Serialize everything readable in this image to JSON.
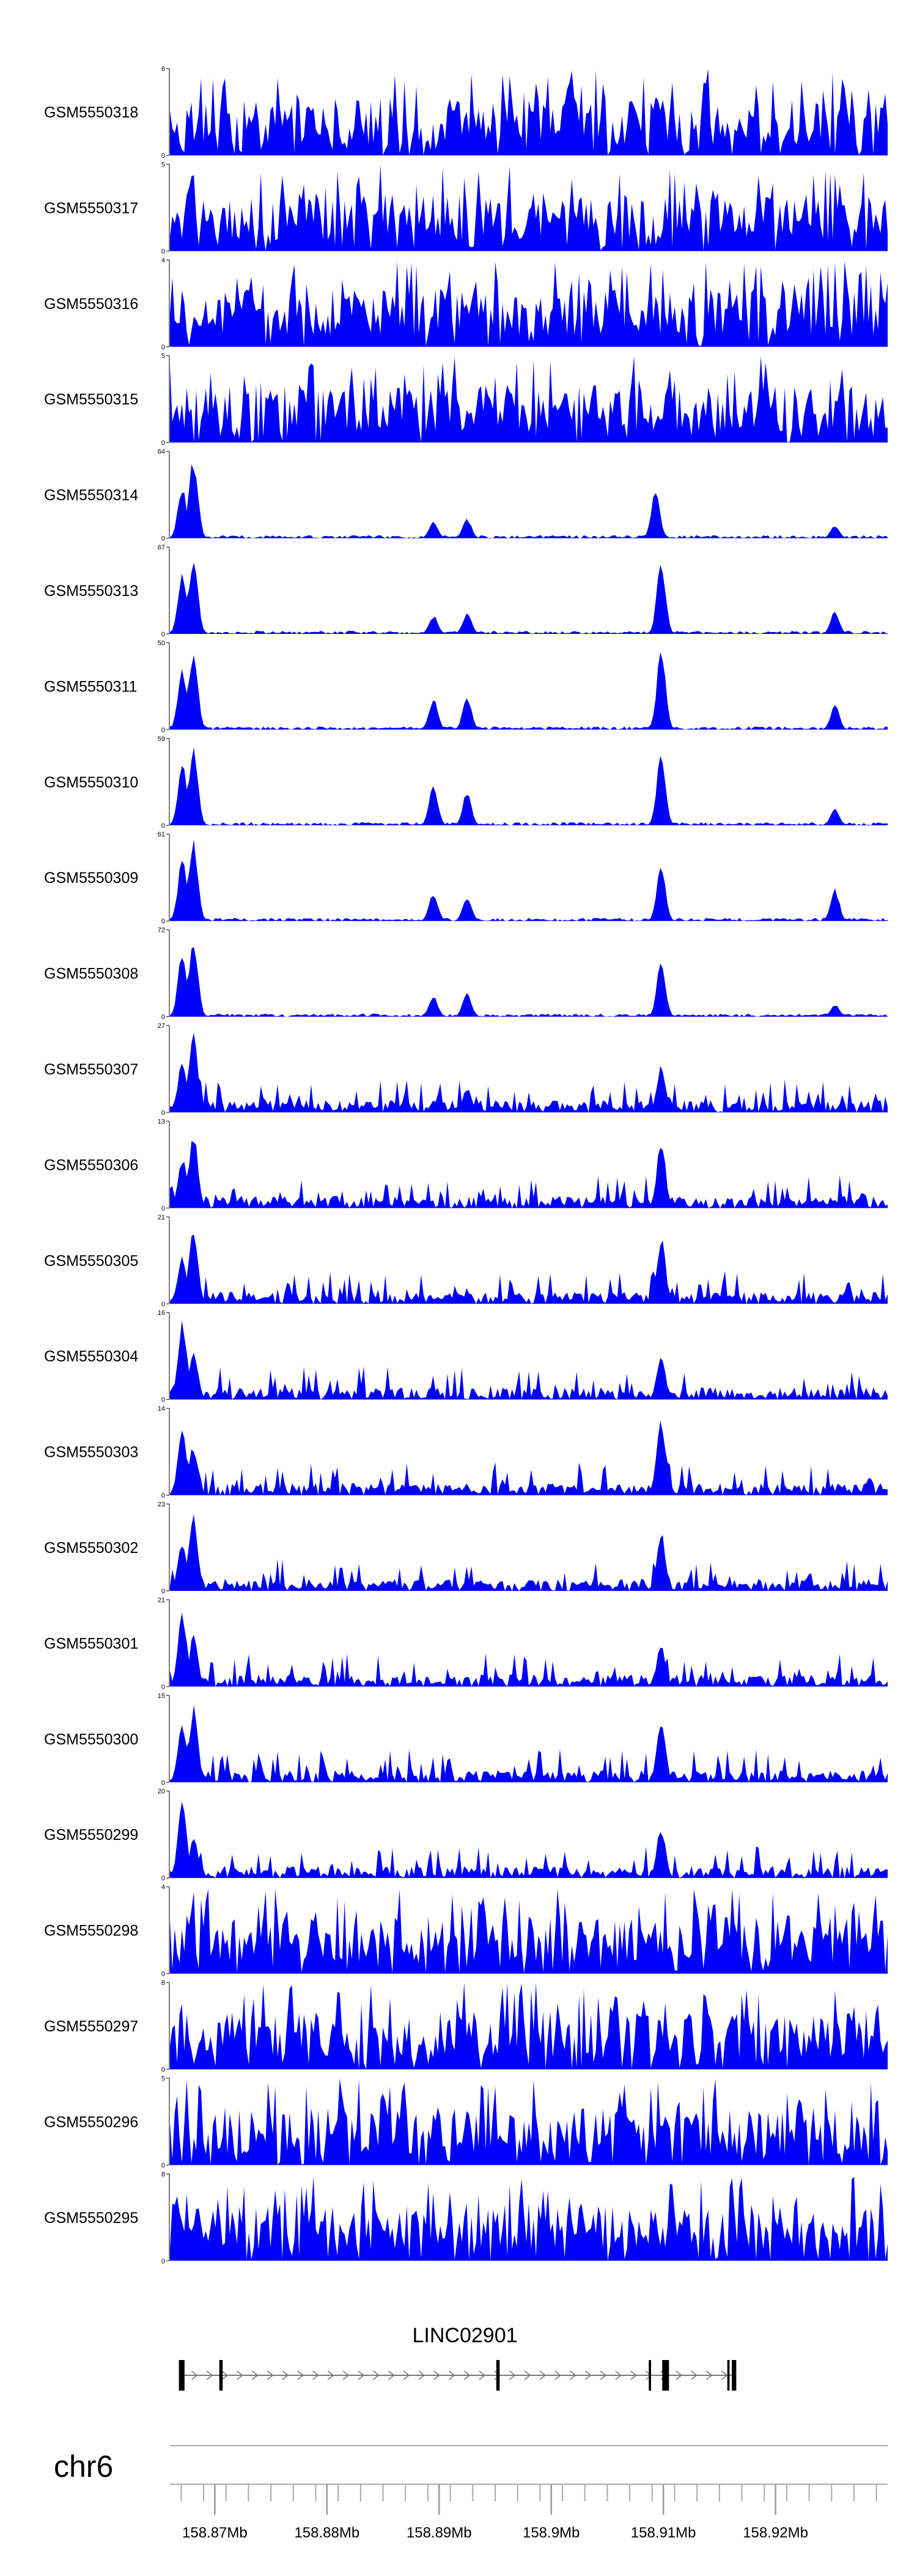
{
  "chart_data": {
    "type": "area",
    "series_color": "#0000ff",
    "x_axis": {
      "chromosome": "chr6",
      "range_mb": [
        158.866,
        158.93
      ],
      "tick_labels": [
        {
          "mb": 158.87,
          "label": "158.87Mb"
        },
        {
          "mb": 158.88,
          "label": "158.88Mb"
        },
        {
          "mb": 158.89,
          "label": "158.89Mb"
        },
        {
          "mb": 158.9,
          "label": "158.9Mb"
        },
        {
          "mb": 158.91,
          "label": "158.91Mb"
        },
        {
          "mb": 158.92,
          "label": "158.92Mb"
        }
      ]
    },
    "tracks": [
      {
        "name": "GSM5550318",
        "ymax": 6,
        "profile": "noise",
        "peaks": []
      },
      {
        "name": "GSM5550317",
        "ymax": 5,
        "profile": "noise",
        "peaks": []
      },
      {
        "name": "GSM5550316",
        "ymax": 4,
        "profile": "noise",
        "peaks": []
      },
      {
        "name": "GSM5550315",
        "ymax": 5,
        "profile": "noise",
        "peaks": []
      },
      {
        "name": "GSM5550314",
        "ymax": 64,
        "profile": "peaks",
        "peaks": [
          [
            158.8671,
            0.62
          ],
          [
            158.8681,
            0.95
          ],
          [
            158.8895,
            0.2
          ],
          [
            158.8925,
            0.23
          ],
          [
            158.9093,
            0.55
          ],
          [
            158.9253,
            0.15
          ]
        ]
      },
      {
        "name": "GSM5550313",
        "ymax": 67,
        "profile": "peaks",
        "peaks": [
          [
            158.8671,
            0.7
          ],
          [
            158.8681,
            0.95
          ],
          [
            158.8895,
            0.22
          ],
          [
            158.8925,
            0.25
          ],
          [
            158.9098,
            0.85
          ],
          [
            158.9253,
            0.28
          ]
        ]
      },
      {
        "name": "GSM5550311",
        "ymax": 50,
        "profile": "peaks",
        "peaks": [
          [
            158.8671,
            0.72
          ],
          [
            158.8681,
            0.95
          ],
          [
            158.8895,
            0.38
          ],
          [
            158.8925,
            0.4
          ],
          [
            158.9098,
            0.95
          ],
          [
            158.9253,
            0.3
          ]
        ]
      },
      {
        "name": "GSM5550310",
        "ymax": 59,
        "profile": "peaks",
        "peaks": [
          [
            158.8671,
            0.72
          ],
          [
            158.8681,
            0.95
          ],
          [
            158.8895,
            0.48
          ],
          [
            158.8925,
            0.4
          ],
          [
            158.9098,
            0.85
          ],
          [
            158.9253,
            0.2
          ]
        ]
      },
      {
        "name": "GSM5550309",
        "ymax": 61,
        "profile": "peaks",
        "peaks": [
          [
            158.8671,
            0.75
          ],
          [
            158.8681,
            0.95
          ],
          [
            158.8895,
            0.35
          ],
          [
            158.8925,
            0.3
          ],
          [
            158.9098,
            0.65
          ],
          [
            158.9253,
            0.38
          ]
        ]
      },
      {
        "name": "GSM5550308",
        "ymax": 72,
        "profile": "peaks",
        "peaks": [
          [
            158.8671,
            0.75
          ],
          [
            158.8681,
            0.95
          ],
          [
            158.8895,
            0.25
          ],
          [
            158.8925,
            0.28
          ],
          [
            158.9098,
            0.65
          ],
          [
            158.9253,
            0.15
          ]
        ]
      },
      {
        "name": "GSM5550307",
        "ymax": 27,
        "profile": "mixed",
        "peaks": [
          [
            158.8671,
            0.6
          ],
          [
            158.8681,
            0.95
          ],
          [
            158.8925,
            0.3
          ],
          [
            158.9098,
            0.55
          ]
        ]
      },
      {
        "name": "GSM5550306",
        "ymax": 13,
        "profile": "mixed",
        "peaks": [
          [
            158.8671,
            0.6
          ],
          [
            158.8681,
            0.9
          ],
          [
            158.9098,
            0.8
          ]
        ]
      },
      {
        "name": "GSM5550305",
        "ymax": 21,
        "profile": "mixed",
        "peaks": [
          [
            158.8671,
            0.6
          ],
          [
            158.8681,
            0.9
          ],
          [
            158.9098,
            0.8
          ]
        ]
      },
      {
        "name": "GSM5550304",
        "ymax": 16,
        "profile": "mixed",
        "peaks": [
          [
            158.8671,
            0.95
          ],
          [
            158.8681,
            0.55
          ],
          [
            158.9098,
            0.5
          ]
        ]
      },
      {
        "name": "GSM5550303",
        "ymax": 14,
        "profile": "mixed",
        "peaks": [
          [
            158.8671,
            0.75
          ],
          [
            158.8681,
            0.6
          ],
          [
            158.9098,
            0.95
          ]
        ]
      },
      {
        "name": "GSM5550302",
        "ymax": 23,
        "profile": "mixed",
        "peaks": [
          [
            158.8671,
            0.6
          ],
          [
            158.8681,
            0.9
          ],
          [
            158.9098,
            0.7
          ]
        ]
      },
      {
        "name": "GSM5550301",
        "ymax": 21,
        "profile": "mixed",
        "peaks": [
          [
            158.8671,
            0.9
          ],
          [
            158.8681,
            0.6
          ],
          [
            158.9098,
            0.5
          ]
        ]
      },
      {
        "name": "GSM5550300",
        "ymax": 15,
        "profile": "mixed",
        "peaks": [
          [
            158.8671,
            0.7
          ],
          [
            158.8681,
            0.9
          ],
          [
            158.9098,
            0.75
          ]
        ]
      },
      {
        "name": "GSM5550299",
        "ymax": 20,
        "profile": "mixed",
        "peaks": [
          [
            158.8671,
            0.9
          ],
          [
            158.8681,
            0.5
          ],
          [
            158.9098,
            0.6
          ]
        ]
      },
      {
        "name": "GSM5550298",
        "ymax": 4,
        "profile": "noise",
        "peaks": []
      },
      {
        "name": "GSM5550297",
        "ymax": 8,
        "profile": "noise",
        "peaks": []
      },
      {
        "name": "GSM5550296",
        "ymax": 5,
        "profile": "noise",
        "peaks": []
      },
      {
        "name": "GSM5550295",
        "ymax": 8,
        "profile": "noise",
        "peaks": []
      }
    ],
    "gene": {
      "name": "LINC02901",
      "start_mb": 158.8668,
      "end_mb": 158.9165,
      "strand": "+",
      "exons": [
        [
          158.8668,
          158.8673
        ],
        [
          158.8704,
          158.8707
        ],
        [
          158.8951,
          158.8954
        ],
        [
          158.9087,
          158.9089
        ],
        [
          158.9099,
          158.9105
        ],
        [
          158.9157,
          158.9159
        ],
        [
          158.9161,
          158.9165
        ]
      ]
    }
  }
}
